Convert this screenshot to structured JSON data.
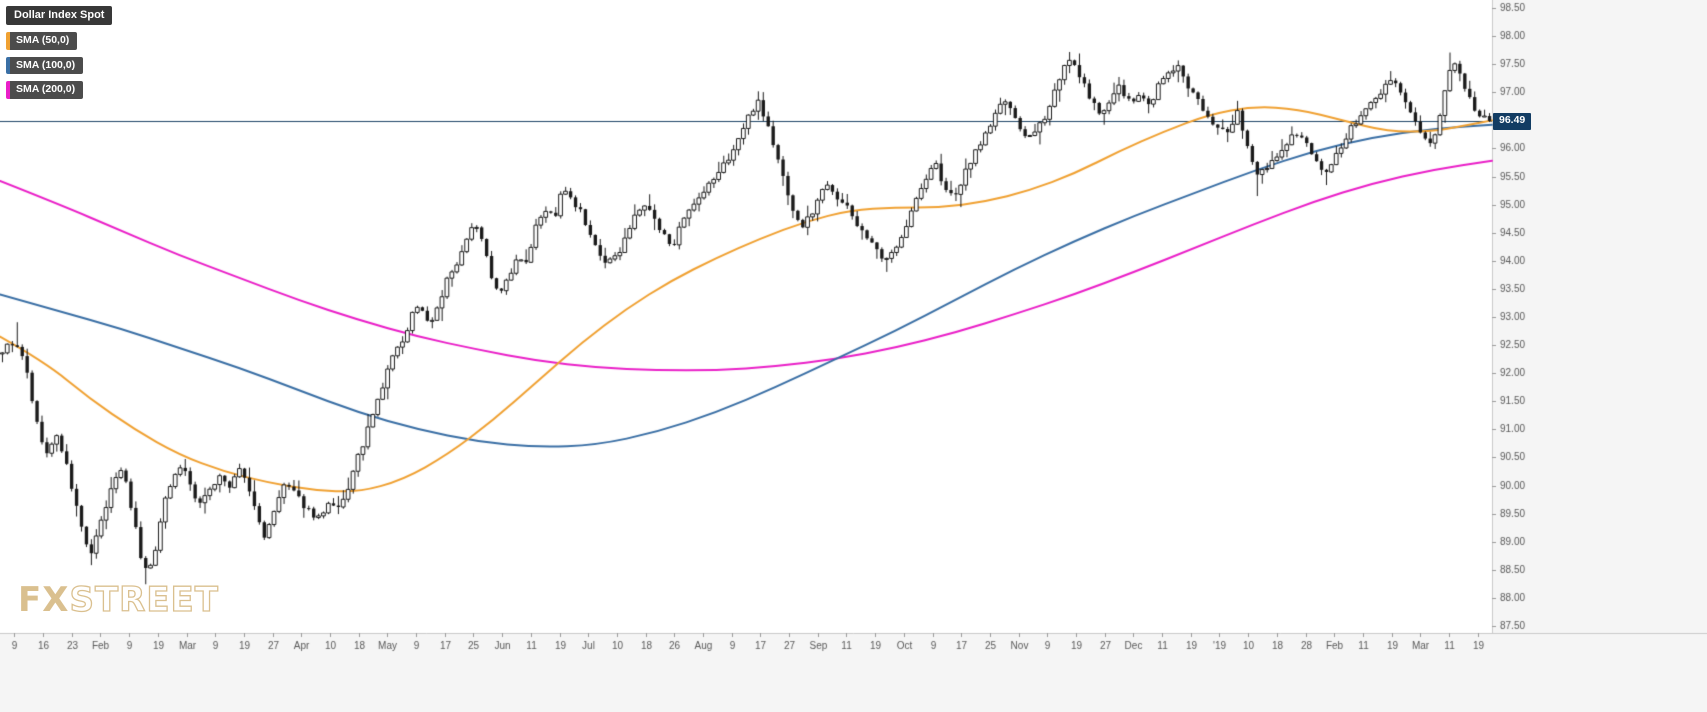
{
  "watermark": {
    "fx": "FX",
    "street": "STREET"
  },
  "chart_data": {
    "type": "candlestick",
    "title": "Dollar Index Spot",
    "instrument": "Dollar Index Spot",
    "last_price": 96.49,
    "last_price_label": "96.49",
    "candle_count": 302,
    "render_seed": 9,
    "render_noise": 0.13,
    "legend": [
      {
        "label": "Dollar Index Spot",
        "type": "title"
      },
      {
        "label": "SMA (50,0)",
        "series": "sma50"
      },
      {
        "label": "SMA (100,0)",
        "series": "sma100"
      },
      {
        "label": "SMA (200,0)",
        "series": "sma200"
      }
    ],
    "colors": {
      "up": "#ffffff",
      "down": "#1a1a1a",
      "outline": "#1a1a1a",
      "sma50": "#f0a132",
      "sma100": "#3a6fa5",
      "sma200": "#ea1fc8",
      "last_price_line": "#1d4466",
      "last_price_bg": "#123c63",
      "axis_text": "#5a5a5a",
      "axis_bg": "#f5f5f5",
      "axis_border": "#c9c9c9",
      "plot_bg": "#ffffff"
    },
    "y_axis": {
      "min": 87.5,
      "max": 98.5,
      "step": 0.5,
      "labels": [
        "98.50",
        "98.00",
        "97.50",
        "97.00",
        "96.50",
        "96.00",
        "95.50",
        "95.00",
        "94.50",
        "94.00",
        "93.50",
        "93.00",
        "92.50",
        "92.00",
        "91.50",
        "91.00",
        "90.50",
        "90.00",
        "89.50",
        "89.00",
        "88.50",
        "88.00",
        "87.50"
      ]
    },
    "x_labels": [
      "9",
      "16",
      "23",
      "Feb",
      "9",
      "19",
      "Mar",
      "9",
      "19",
      "27",
      "Apr",
      "10",
      "18",
      "May",
      "9",
      "17",
      "25",
      "Jun",
      "11",
      "19",
      "Jul",
      "10",
      "18",
      "26",
      "Aug",
      "9",
      "17",
      "27",
      "Sep",
      "11",
      "19",
      "Oct",
      "9",
      "17",
      "25",
      "Nov",
      "9",
      "19",
      "27",
      "Dec",
      "11",
      "19",
      "'19",
      "10",
      "18",
      "28",
      "Feb",
      "11",
      "19",
      "Mar",
      "11",
      "19"
    ],
    "series": {
      "close_keypoints": [
        [
          0.0,
          92.4
        ],
        [
          0.007,
          92.55
        ],
        [
          0.013,
          92.3
        ],
        [
          0.017,
          91.95
        ],
        [
          0.023,
          91.1
        ],
        [
          0.03,
          90.55
        ],
        [
          0.037,
          90.9
        ],
        [
          0.043,
          90.35
        ],
        [
          0.049,
          89.7
        ],
        [
          0.055,
          89.05
        ],
        [
          0.06,
          88.78
        ],
        [
          0.066,
          89.3
        ],
        [
          0.072,
          89.8
        ],
        [
          0.078,
          90.32
        ],
        [
          0.083,
          90.1
        ],
        [
          0.088,
          89.45
        ],
        [
          0.093,
          88.75
        ],
        [
          0.098,
          88.42
        ],
        [
          0.104,
          89.0
        ],
        [
          0.11,
          89.8
        ],
        [
          0.116,
          90.25
        ],
        [
          0.122,
          90.36
        ],
        [
          0.128,
          89.85
        ],
        [
          0.134,
          89.65
        ],
        [
          0.141,
          90.0
        ],
        [
          0.147,
          90.2
        ],
        [
          0.153,
          89.95
        ],
        [
          0.16,
          90.32
        ],
        [
          0.166,
          89.9
        ],
        [
          0.172,
          89.4
        ],
        [
          0.177,
          89.05
        ],
        [
          0.183,
          89.55
        ],
        [
          0.19,
          90.05
        ],
        [
          0.196,
          89.85
        ],
        [
          0.202,
          89.68
        ],
        [
          0.208,
          89.5
        ],
        [
          0.214,
          89.42
        ],
        [
          0.22,
          89.65
        ],
        [
          0.227,
          89.55
        ],
        [
          0.233,
          90.0
        ],
        [
          0.239,
          90.48
        ],
        [
          0.245,
          90.92
        ],
        [
          0.251,
          91.38
        ],
        [
          0.257,
          91.85
        ],
        [
          0.263,
          92.38
        ],
        [
          0.269,
          92.5
        ],
        [
          0.275,
          93.05
        ],
        [
          0.281,
          93.22
        ],
        [
          0.287,
          92.85
        ],
        [
          0.293,
          93.2
        ],
        [
          0.299,
          93.65
        ],
        [
          0.305,
          93.88
        ],
        [
          0.311,
          94.22
        ],
        [
          0.317,
          94.78
        ],
        [
          0.323,
          94.32
        ],
        [
          0.329,
          93.72
        ],
        [
          0.335,
          93.38
        ],
        [
          0.341,
          93.78
        ],
        [
          0.347,
          94.1
        ],
        [
          0.353,
          94.0
        ],
        [
          0.359,
          94.7
        ],
        [
          0.365,
          94.92
        ],
        [
          0.371,
          94.75
        ],
        [
          0.377,
          95.28
        ],
        [
          0.383,
          95.05
        ],
        [
          0.389,
          94.85
        ],
        [
          0.395,
          94.42
        ],
        [
          0.401,
          94.12
        ],
        [
          0.407,
          93.95
        ],
        [
          0.413,
          94.05
        ],
        [
          0.419,
          94.45
        ],
        [
          0.425,
          94.75
        ],
        [
          0.431,
          95.02
        ],
        [
          0.437,
          94.8
        ],
        [
          0.443,
          94.48
        ],
        [
          0.451,
          94.3
        ],
        [
          0.457,
          94.65
        ],
        [
          0.463,
          94.9
        ],
        [
          0.471,
          95.15
        ],
        [
          0.477,
          95.42
        ],
        [
          0.483,
          95.62
        ],
        [
          0.49,
          95.9
        ],
        [
          0.496,
          96.22
        ],
        [
          0.503,
          96.62
        ],
        [
          0.508,
          96.88
        ],
        [
          0.514,
          96.45
        ],
        [
          0.52,
          95.92
        ],
        [
          0.526,
          95.4
        ],
        [
          0.532,
          94.88
        ],
        [
          0.537,
          94.58
        ],
        [
          0.543,
          94.78
        ],
        [
          0.549,
          95.12
        ],
        [
          0.555,
          95.42
        ],
        [
          0.561,
          95.15
        ],
        [
          0.569,
          94.9
        ],
        [
          0.575,
          94.65
        ],
        [
          0.581,
          94.45
        ],
        [
          0.588,
          94.15
        ],
        [
          0.594,
          93.96
        ],
        [
          0.6,
          94.22
        ],
        [
          0.608,
          94.65
        ],
        [
          0.614,
          95.05
        ],
        [
          0.621,
          95.45
        ],
        [
          0.627,
          95.75
        ],
        [
          0.633,
          95.35
        ],
        [
          0.64,
          95.05
        ],
        [
          0.647,
          95.55
        ],
        [
          0.653,
          95.9
        ],
        [
          0.66,
          96.2
        ],
        [
          0.667,
          96.55
        ],
        [
          0.673,
          96.9
        ],
        [
          0.68,
          96.55
        ],
        [
          0.686,
          96.3
        ],
        [
          0.692,
          96.15
        ],
        [
          0.699,
          96.45
        ],
        [
          0.706,
          96.9
        ],
        [
          0.712,
          97.35
        ],
        [
          0.718,
          97.55
        ],
        [
          0.725,
          97.3
        ],
        [
          0.731,
          96.85
        ],
        [
          0.738,
          96.65
        ],
        [
          0.745,
          96.85
        ],
        [
          0.751,
          97.1
        ],
        [
          0.758,
          96.8
        ],
        [
          0.765,
          96.95
        ],
        [
          0.771,
          96.75
        ],
        [
          0.778,
          97.15
        ],
        [
          0.784,
          97.35
        ],
        [
          0.791,
          97.45
        ],
        [
          0.797,
          97.05
        ],
        [
          0.804,
          96.85
        ],
        [
          0.81,
          96.6
        ],
        [
          0.817,
          96.4
        ],
        [
          0.824,
          96.25
        ],
        [
          0.83,
          96.7
        ],
        [
          0.837,
          96.05
        ],
        [
          0.843,
          95.45
        ],
        [
          0.85,
          95.65
        ],
        [
          0.856,
          95.8
        ],
        [
          0.863,
          96.1
        ],
        [
          0.869,
          96.3
        ],
        [
          0.876,
          96.1
        ],
        [
          0.882,
          95.8
        ],
        [
          0.889,
          95.55
        ],
        [
          0.896,
          95.85
        ],
        [
          0.902,
          96.1
        ],
        [
          0.908,
          96.4
        ],
        [
          0.915,
          96.65
        ],
        [
          0.922,
          96.9
        ],
        [
          0.928,
          97.05
        ],
        [
          0.935,
          97.25
        ],
        [
          0.941,
          96.95
        ],
        [
          0.947,
          96.6
        ],
        [
          0.954,
          96.3
        ],
        [
          0.959,
          96.1
        ],
        [
          0.963,
          96.2
        ],
        [
          0.967,
          96.6
        ],
        [
          0.971,
          97.1
        ],
        [
          0.975,
          97.55
        ],
        [
          0.978,
          97.4
        ],
        [
          0.982,
          97.15
        ],
        [
          0.986,
          96.9
        ],
        [
          0.99,
          96.72
        ],
        [
          0.995,
          96.55
        ],
        [
          1.0,
          96.49
        ]
      ],
      "extremes": [
        {
          "t": 0.01,
          "high": 92.9
        },
        {
          "t": 0.06,
          "low": 88.59
        },
        {
          "t": 0.098,
          "low": 88.25
        },
        {
          "t": 0.508,
          "high": 97.01
        },
        {
          "t": 0.594,
          "low": 93.81
        },
        {
          "t": 0.718,
          "high": 97.71
        },
        {
          "t": 0.791,
          "high": 97.56
        },
        {
          "t": 0.843,
          "low": 95.16
        },
        {
          "t": 0.935,
          "high": 97.37
        },
        {
          "t": 0.975,
          "high": 97.7
        }
      ],
      "sma50_keypoints": [
        [
          0.0,
          92.65
        ],
        [
          0.03,
          92.2
        ],
        [
          0.06,
          91.55
        ],
        [
          0.09,
          91.0
        ],
        [
          0.12,
          90.55
        ],
        [
          0.15,
          90.25
        ],
        [
          0.18,
          90.05
        ],
        [
          0.21,
          89.92
        ],
        [
          0.24,
          89.88
        ],
        [
          0.27,
          90.1
        ],
        [
          0.3,
          90.55
        ],
        [
          0.33,
          91.15
        ],
        [
          0.36,
          91.85
        ],
        [
          0.39,
          92.55
        ],
        [
          0.42,
          93.15
        ],
        [
          0.45,
          93.65
        ],
        [
          0.48,
          94.05
        ],
        [
          0.51,
          94.4
        ],
        [
          0.54,
          94.7
        ],
        [
          0.57,
          94.9
        ],
        [
          0.6,
          94.95
        ],
        [
          0.63,
          94.95
        ],
        [
          0.66,
          95.05
        ],
        [
          0.69,
          95.25
        ],
        [
          0.72,
          95.55
        ],
        [
          0.75,
          95.95
        ],
        [
          0.78,
          96.3
        ],
        [
          0.81,
          96.6
        ],
        [
          0.84,
          96.75
        ],
        [
          0.87,
          96.7
        ],
        [
          0.9,
          96.5
        ],
        [
          0.93,
          96.3
        ],
        [
          0.96,
          96.3
        ],
        [
          0.98,
          96.4
        ],
        [
          1.0,
          96.5
        ]
      ],
      "sma100_keypoints": [
        [
          0.0,
          93.4
        ],
        [
          0.04,
          93.1
        ],
        [
          0.08,
          92.8
        ],
        [
          0.12,
          92.45
        ],
        [
          0.16,
          92.1
        ],
        [
          0.2,
          91.7
        ],
        [
          0.24,
          91.3
        ],
        [
          0.28,
          91.0
        ],
        [
          0.32,
          90.78
        ],
        [
          0.36,
          90.68
        ],
        [
          0.4,
          90.72
        ],
        [
          0.44,
          90.95
        ],
        [
          0.48,
          91.3
        ],
        [
          0.52,
          91.75
        ],
        [
          0.56,
          92.25
        ],
        [
          0.6,
          92.75
        ],
        [
          0.64,
          93.3
        ],
        [
          0.68,
          93.85
        ],
        [
          0.72,
          94.35
        ],
        [
          0.76,
          94.8
        ],
        [
          0.8,
          95.2
        ],
        [
          0.84,
          95.6
        ],
        [
          0.88,
          95.95
        ],
        [
          0.92,
          96.2
        ],
        [
          0.96,
          96.35
        ],
        [
          1.0,
          96.42
        ]
      ],
      "sma200_keypoints": [
        [
          0.0,
          95.42
        ],
        [
          0.04,
          95.0
        ],
        [
          0.08,
          94.55
        ],
        [
          0.12,
          94.1
        ],
        [
          0.16,
          93.7
        ],
        [
          0.2,
          93.3
        ],
        [
          0.24,
          92.95
        ],
        [
          0.28,
          92.65
        ],
        [
          0.32,
          92.42
        ],
        [
          0.36,
          92.22
        ],
        [
          0.4,
          92.1
        ],
        [
          0.44,
          92.05
        ],
        [
          0.48,
          92.05
        ],
        [
          0.52,
          92.12
        ],
        [
          0.56,
          92.25
        ],
        [
          0.6,
          92.45
        ],
        [
          0.64,
          92.72
        ],
        [
          0.68,
          93.05
        ],
        [
          0.72,
          93.4
        ],
        [
          0.76,
          93.8
        ],
        [
          0.8,
          94.22
        ],
        [
          0.84,
          94.65
        ],
        [
          0.88,
          95.05
        ],
        [
          0.92,
          95.38
        ],
        [
          0.96,
          95.62
        ],
        [
          1.0,
          95.78
        ]
      ]
    }
  }
}
